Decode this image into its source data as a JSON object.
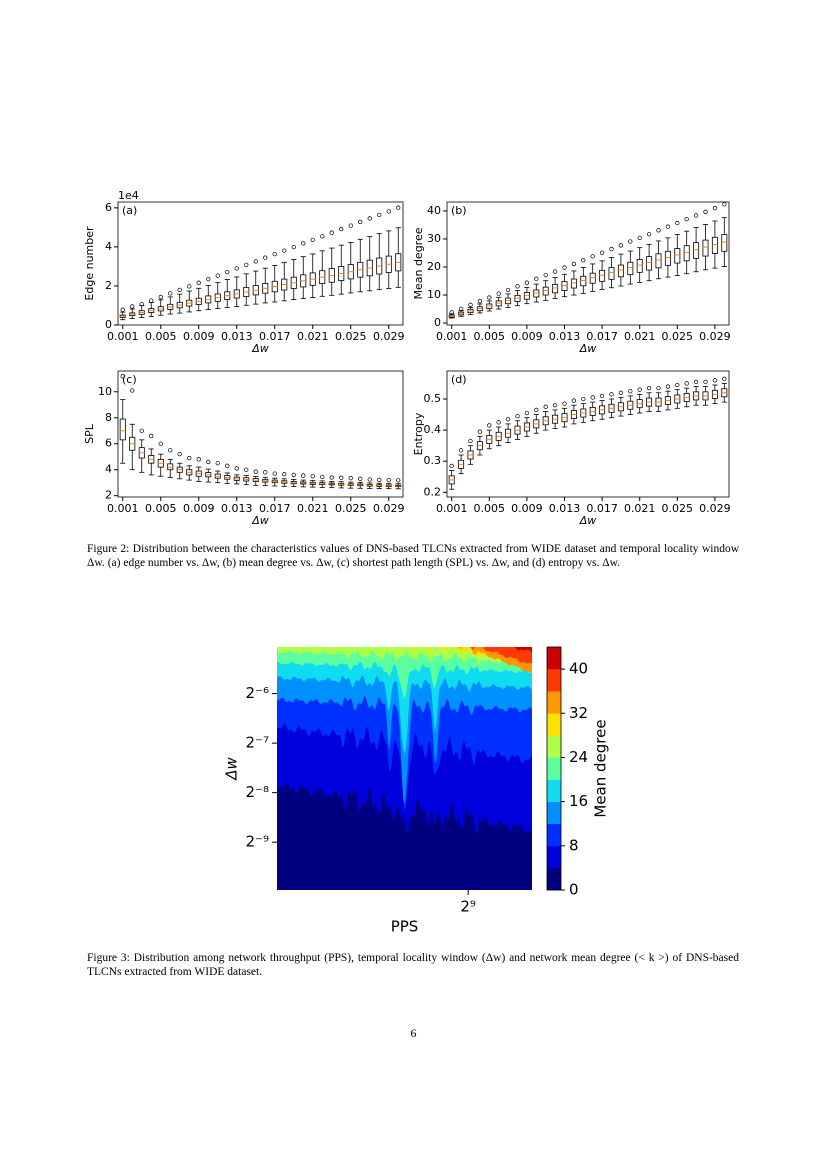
{
  "chart_data": [
    {
      "type": "box",
      "panel_label": "(a)",
      "y_label": "Edge number",
      "x_label": "Δw",
      "offset_label": "1e4",
      "categories": [
        "0.001",
        null,
        null,
        null,
        "0.005",
        null,
        null,
        null,
        "0.009",
        null,
        null,
        null,
        "0.013",
        null,
        null,
        null,
        "0.017",
        null,
        null,
        null,
        "0.021",
        null,
        null,
        null,
        "0.025",
        null,
        null,
        null,
        "0.029",
        null
      ],
      "whisker_low": [
        0.27,
        0.33,
        0.38,
        0.44,
        0.5,
        0.56,
        0.61,
        0.67,
        0.73,
        0.79,
        0.84,
        0.9,
        0.95,
        1.01,
        1.07,
        1.13,
        1.18,
        1.24,
        1.3,
        1.36,
        1.41,
        1.47,
        1.52,
        1.58,
        1.64,
        1.7,
        1.75,
        1.81,
        1.87,
        1.93
      ],
      "q1": [
        0.39,
        0.48,
        0.55,
        0.64,
        0.72,
        0.8,
        0.88,
        0.97,
        1.05,
        1.13,
        1.21,
        1.3,
        1.38,
        1.46,
        1.54,
        1.63,
        1.7,
        1.79,
        1.87,
        1.95,
        2.03,
        2.12,
        2.19,
        2.28,
        2.36,
        2.45,
        2.52,
        2.61,
        2.69,
        2.77
      ],
      "median": [
        0.45,
        0.55,
        0.64,
        0.74,
        0.83,
        0.93,
        1.02,
        1.12,
        1.21,
        1.31,
        1.4,
        1.5,
        1.59,
        1.69,
        1.78,
        1.88,
        1.97,
        2.07,
        2.16,
        2.26,
        2.35,
        2.45,
        2.54,
        2.64,
        2.73,
        2.83,
        2.92,
        3.02,
        3.11,
        3.21
      ],
      "q3": [
        0.51,
        0.62,
        0.73,
        0.84,
        0.94,
        1.06,
        1.16,
        1.27,
        1.37,
        1.49,
        1.59,
        1.7,
        1.8,
        1.92,
        2.02,
        2.13,
        2.24,
        2.35,
        2.45,
        2.57,
        2.67,
        2.78,
        2.89,
        3.0,
        3.1,
        3.21,
        3.32,
        3.43,
        3.53,
        3.65
      ],
      "whisker_high": [
        0.66,
        0.82,
        0.99,
        1.15,
        1.29,
        1.44,
        1.58,
        1.74,
        1.88,
        2.03,
        2.17,
        2.33,
        2.46,
        2.62,
        2.76,
        2.91,
        3.05,
        3.21,
        3.35,
        3.5,
        3.64,
        3.8,
        3.94,
        4.09,
        4.23,
        4.39,
        4.53,
        4.68,
        4.82,
        4.98
      ],
      "outlier_max": [
        0.78,
        0.95,
        1.07,
        1.25,
        1.43,
        1.62,
        1.8,
        1.98,
        2.16,
        2.35,
        2.53,
        2.71,
        2.9,
        3.08,
        3.26,
        3.45,
        3.63,
        3.81,
        3.99,
        4.18,
        4.36,
        4.54,
        4.73,
        4.91,
        5.09,
        5.28,
        5.46,
        5.64,
        5.82,
        6.01
      ],
      "ylim": [
        0,
        6.3
      ],
      "yticks": [
        0,
        2,
        4,
        6
      ]
    },
    {
      "type": "box",
      "panel_label": "(b)",
      "y_label": "Mean degree",
      "x_label": "Δw",
      "categories": [
        "0.001",
        null,
        null,
        null,
        "0.005",
        null,
        null,
        null,
        "0.009",
        null,
        null,
        null,
        "0.013",
        null,
        null,
        null,
        "0.017",
        null,
        null,
        null,
        "0.021",
        null,
        null,
        null,
        "0.025",
        null,
        null,
        null,
        "0.029",
        null
      ],
      "whisker_low": [
        1.8,
        2.4,
        3.0,
        3.6,
        4.3,
        5.0,
        5.6,
        6.2,
        6.9,
        7.5,
        8.1,
        8.8,
        9.4,
        10.0,
        10.6,
        11.3,
        12.0,
        12.6,
        13.2,
        13.9,
        14.5,
        15.1,
        15.8,
        16.4,
        17.0,
        17.6,
        18.3,
        19.0,
        19.6,
        20.2
      ],
      "q1": [
        2.1,
        2.9,
        3.7,
        4.4,
        5.2,
        6.1,
        6.9,
        7.7,
        8.5,
        9.3,
        10.0,
        10.8,
        11.6,
        12.5,
        13.3,
        14.2,
        14.9,
        15.6,
        16.5,
        17.3,
        18.1,
        18.9,
        19.7,
        20.6,
        21.4,
        22.2,
        23.1,
        23.9,
        24.8,
        25.6
      ],
      "median": [
        2.5,
        3.4,
        4.3,
        5.2,
        6.1,
        7.1,
        8.0,
        8.9,
        9.8,
        10.7,
        11.6,
        12.5,
        13.4,
        14.3,
        15.2,
        16.2,
        17.1,
        18.0,
        18.9,
        19.8,
        20.7,
        21.6,
        22.5,
        23.4,
        24.3,
        25.2,
        26.2,
        27.1,
        28.0,
        28.9
      ],
      "q3": [
        2.9,
        3.9,
        4.9,
        5.8,
        6.8,
        7.9,
        8.9,
        9.9,
        10.9,
        11.8,
        12.8,
        13.8,
        14.8,
        15.7,
        16.7,
        17.8,
        18.8,
        19.8,
        20.7,
        21.7,
        22.7,
        23.7,
        24.7,
        25.6,
        26.6,
        27.6,
        28.7,
        29.6,
        30.6,
        31.6
      ],
      "whisker_high": [
        3.3,
        4.4,
        5.6,
        6.8,
        7.9,
        9.2,
        10.4,
        11.6,
        12.7,
        13.9,
        15.1,
        16.3,
        17.4,
        18.6,
        19.8,
        21.1,
        22.2,
        23.4,
        24.6,
        25.7,
        26.9,
        28.1,
        29.3,
        30.4,
        31.6,
        32.8,
        34.1,
        35.2,
        36.4,
        37.6
      ],
      "outlier_max": [
        3.8,
        5.1,
        6.5,
        7.8,
        9.1,
        10.5,
        11.8,
        13.1,
        14.4,
        15.8,
        17.1,
        18.4,
        19.8,
        21.1,
        22.4,
        23.8,
        25.1,
        26.4,
        27.7,
        29.1,
        30.4,
        31.7,
        33.1,
        34.4,
        35.7,
        37.1,
        38.4,
        39.7,
        41.0,
        42.4
      ],
      "ylim": [
        -0.7,
        43.2
      ],
      "yticks": [
        0,
        10,
        20,
        30,
        40
      ]
    },
    {
      "type": "box",
      "panel_label": "(c)",
      "y_label": "SPL",
      "x_label": "Δw",
      "categories": [
        "0.001",
        null,
        null,
        null,
        "0.005",
        null,
        null,
        null,
        "0.009",
        null,
        null,
        null,
        "0.013",
        null,
        null,
        null,
        "0.017",
        null,
        null,
        null,
        "0.021",
        null,
        null,
        null,
        "0.025",
        null,
        null,
        null,
        "0.029",
        null
      ],
      "whisker_low": [
        4.5,
        4.0,
        3.8,
        3.6,
        3.5,
        3.4,
        3.3,
        3.2,
        3.1,
        3.05,
        3.0,
        2.95,
        2.9,
        2.85,
        2.8,
        2.78,
        2.75,
        2.72,
        2.7,
        2.68,
        2.66,
        2.64,
        2.62,
        2.6,
        2.58,
        2.57,
        2.56,
        2.55,
        2.54,
        2.53
      ],
      "q1": [
        6.3,
        5.5,
        4.9,
        4.5,
        4.2,
        4.0,
        3.8,
        3.6,
        3.5,
        3.45,
        3.35,
        3.27,
        3.18,
        3.13,
        3.09,
        3.05,
        3.0,
        2.96,
        2.92,
        2.9,
        2.87,
        2.85,
        2.83,
        2.81,
        2.79,
        2.77,
        2.74,
        2.72,
        2.71,
        2.7
      ],
      "median": [
        7.0,
        6.0,
        5.3,
        4.8,
        4.5,
        4.2,
        4.0,
        3.8,
        3.7,
        3.6,
        3.5,
        3.4,
        3.3,
        3.25,
        3.2,
        3.15,
        3.1,
        3.05,
        3.0,
        2.98,
        2.95,
        2.92,
        2.9,
        2.88,
        2.85,
        2.83,
        2.8,
        2.78,
        2.76,
        2.75
      ],
      "q3": [
        7.9,
        6.5,
        5.7,
        5.1,
        4.8,
        4.45,
        4.2,
        4.0,
        3.9,
        3.78,
        3.67,
        3.55,
        3.43,
        3.38,
        3.32,
        3.26,
        3.2,
        3.15,
        3.09,
        3.06,
        3.03,
        3.0,
        2.97,
        2.95,
        2.92,
        2.9,
        2.86,
        2.84,
        2.82,
        2.81
      ],
      "whisker_high": [
        9.4,
        7.5,
        6.3,
        5.6,
        5.2,
        4.8,
        4.5,
        4.3,
        4.2,
        4.05,
        3.9,
        3.75,
        3.6,
        3.55,
        3.48,
        3.42,
        3.35,
        3.3,
        3.25,
        3.2,
        3.17,
        3.14,
        3.1,
        3.08,
        3.05,
        3.02,
        2.98,
        2.96,
        2.94,
        2.92
      ],
      "outlier_max": [
        11.2,
        10.1,
        7.0,
        6.6,
        6.0,
        5.5,
        5.2,
        4.9,
        4.8,
        4.6,
        4.5,
        4.3,
        4.1,
        4.0,
        3.85,
        3.8,
        3.7,
        3.65,
        3.6,
        3.55,
        3.5,
        3.45,
        3.4,
        3.38,
        3.35,
        3.3,
        3.25,
        3.22,
        3.2,
        3.18
      ],
      "ylim": [
        1.9,
        11.6
      ],
      "yticks": [
        2,
        4,
        6,
        8,
        10
      ]
    },
    {
      "type": "box",
      "panel_label": "(d)",
      "y_label": "Entropy",
      "x_label": "Δw",
      "categories": [
        "0.001",
        null,
        null,
        null,
        "0.005",
        null,
        null,
        null,
        "0.009",
        null,
        null,
        null,
        "0.013",
        null,
        null,
        null,
        "0.017",
        null,
        null,
        null,
        "0.021",
        null,
        null,
        null,
        "0.025",
        null,
        null,
        null,
        "0.029",
        null
      ],
      "whisker_low": [
        0.21,
        0.26,
        0.29,
        0.32,
        0.34,
        0.35,
        0.36,
        0.37,
        0.38,
        0.39,
        0.4,
        0.405,
        0.41,
        0.42,
        0.425,
        0.43,
        0.435,
        0.44,
        0.445,
        0.45,
        0.455,
        0.46,
        0.46,
        0.465,
        0.47,
        0.475,
        0.48,
        0.48,
        0.485,
        0.49
      ],
      "q1": [
        0.227,
        0.277,
        0.307,
        0.337,
        0.357,
        0.367,
        0.377,
        0.387,
        0.397,
        0.407,
        0.417,
        0.422,
        0.427,
        0.437,
        0.442,
        0.447,
        0.452,
        0.457,
        0.462,
        0.467,
        0.472,
        0.477,
        0.477,
        0.482,
        0.487,
        0.492,
        0.497,
        0.497,
        0.502,
        0.507
      ],
      "median": [
        0.24,
        0.29,
        0.32,
        0.35,
        0.37,
        0.38,
        0.39,
        0.4,
        0.41,
        0.42,
        0.43,
        0.435,
        0.44,
        0.45,
        0.455,
        0.46,
        0.465,
        0.47,
        0.475,
        0.48,
        0.485,
        0.49,
        0.49,
        0.495,
        0.5,
        0.505,
        0.51,
        0.51,
        0.515,
        0.52
      ],
      "q3": [
        0.253,
        0.303,
        0.333,
        0.363,
        0.383,
        0.393,
        0.403,
        0.413,
        0.423,
        0.433,
        0.443,
        0.448,
        0.453,
        0.463,
        0.468,
        0.473,
        0.478,
        0.483,
        0.488,
        0.493,
        0.498,
        0.503,
        0.503,
        0.508,
        0.513,
        0.518,
        0.523,
        0.523,
        0.528,
        0.533
      ],
      "whisker_high": [
        0.27,
        0.32,
        0.35,
        0.38,
        0.4,
        0.41,
        0.42,
        0.43,
        0.44,
        0.45,
        0.46,
        0.465,
        0.47,
        0.48,
        0.485,
        0.49,
        0.495,
        0.5,
        0.505,
        0.51,
        0.515,
        0.52,
        0.52,
        0.525,
        0.53,
        0.535,
        0.54,
        0.54,
        0.545,
        0.55
      ],
      "outlier_max": [
        0.285,
        0.335,
        0.365,
        0.395,
        0.415,
        0.425,
        0.435,
        0.445,
        0.455,
        0.465,
        0.475,
        0.48,
        0.485,
        0.495,
        0.5,
        0.505,
        0.51,
        0.515,
        0.52,
        0.525,
        0.53,
        0.535,
        0.535,
        0.54,
        0.545,
        0.55,
        0.555,
        0.555,
        0.56,
        0.565
      ],
      "ylim": [
        0.185,
        0.59
      ],
      "yticks": [
        0.2,
        0.3,
        0.4,
        0.5
      ]
    },
    {
      "type": "contour",
      "x_label": "PPS",
      "y_label": "Δw",
      "colorbar_label": "Mean degree",
      "xscale": "log2",
      "yscale": "log2",
      "xlim": [
        40,
        1200
      ],
      "xticks": [
        {
          "value": 512,
          "label": "2⁹"
        }
      ],
      "ylim": [
        0.001,
        0.03
      ],
      "yticks": [
        {
          "value": 0.015625,
          "label": "2⁻⁶"
        },
        {
          "value": 0.0078125,
          "label": "2⁻⁷"
        },
        {
          "value": 0.00390625,
          "label": "2⁻⁸"
        },
        {
          "value": 0.001953125,
          "label": "2⁻⁹"
        }
      ],
      "levels": [
        0,
        4,
        8,
        12,
        16,
        20,
        24,
        28,
        32,
        36,
        40,
        44
      ],
      "colors": [
        "#000080",
        "#0000dd",
        "#0030ff",
        "#0090ff",
        "#10dcf0",
        "#5cffa0",
        "#b0ff47",
        "#ffe000",
        "#ff9800",
        "#ff3a00",
        "#cc0000"
      ],
      "colorbar_ticks": [
        0,
        8,
        16,
        24,
        32,
        40
      ]
    }
  ],
  "captions": [
    "Figure 2: Distribution between the characteristics values of DNS-based TLCNs extracted from WIDE dataset and temporal locality window Δw. (a) edge number vs. Δw, (b) mean degree vs. Δw, (c) shortest path length (SPL) vs. Δw, and (d) entropy vs. Δw.",
    "Figure 3: Distribution among network throughput (PPS), temporal locality window (Δw) and network mean degree (< k >) of DNS-based TLCNs extracted from WIDE dataset."
  ],
  "page_number": "6"
}
